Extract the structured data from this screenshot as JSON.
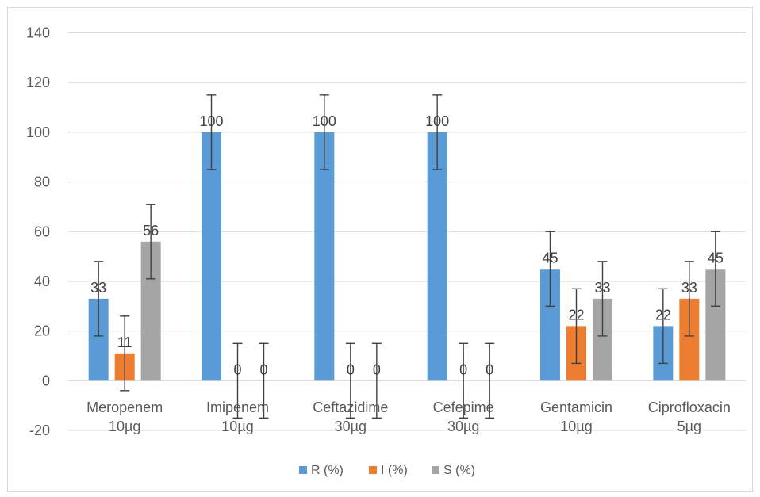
{
  "chart_data": {
    "type": "bar",
    "title": "",
    "xlabel": "",
    "ylabel": "",
    "ylim": [
      -20,
      140
    ],
    "yticks": [
      -20,
      0,
      20,
      40,
      60,
      80,
      100,
      120,
      140
    ],
    "grid": true,
    "legend_position": "bottom",
    "categories": [
      [
        "Meropenem",
        "10µg"
      ],
      [
        "Imipenem",
        "10µg"
      ],
      [
        "Ceftazidime",
        "30µg"
      ],
      [
        "Cefepime",
        "30µg"
      ],
      [
        "Gentamicin",
        "10µg"
      ],
      [
        "Ciprofloxacin",
        "5µg"
      ]
    ],
    "error_bar": 15,
    "series": [
      {
        "name": "R (%)",
        "color": "#5b9bd5",
        "values": [
          33,
          100,
          100,
          100,
          45,
          22
        ]
      },
      {
        "name": "I (%)",
        "color": "#ed7d31",
        "values": [
          11,
          0,
          0,
          0,
          22,
          33
        ]
      },
      {
        "name": "S (%)",
        "color": "#a5a5a5",
        "values": [
          56,
          0,
          0,
          0,
          33,
          45
        ]
      }
    ]
  }
}
